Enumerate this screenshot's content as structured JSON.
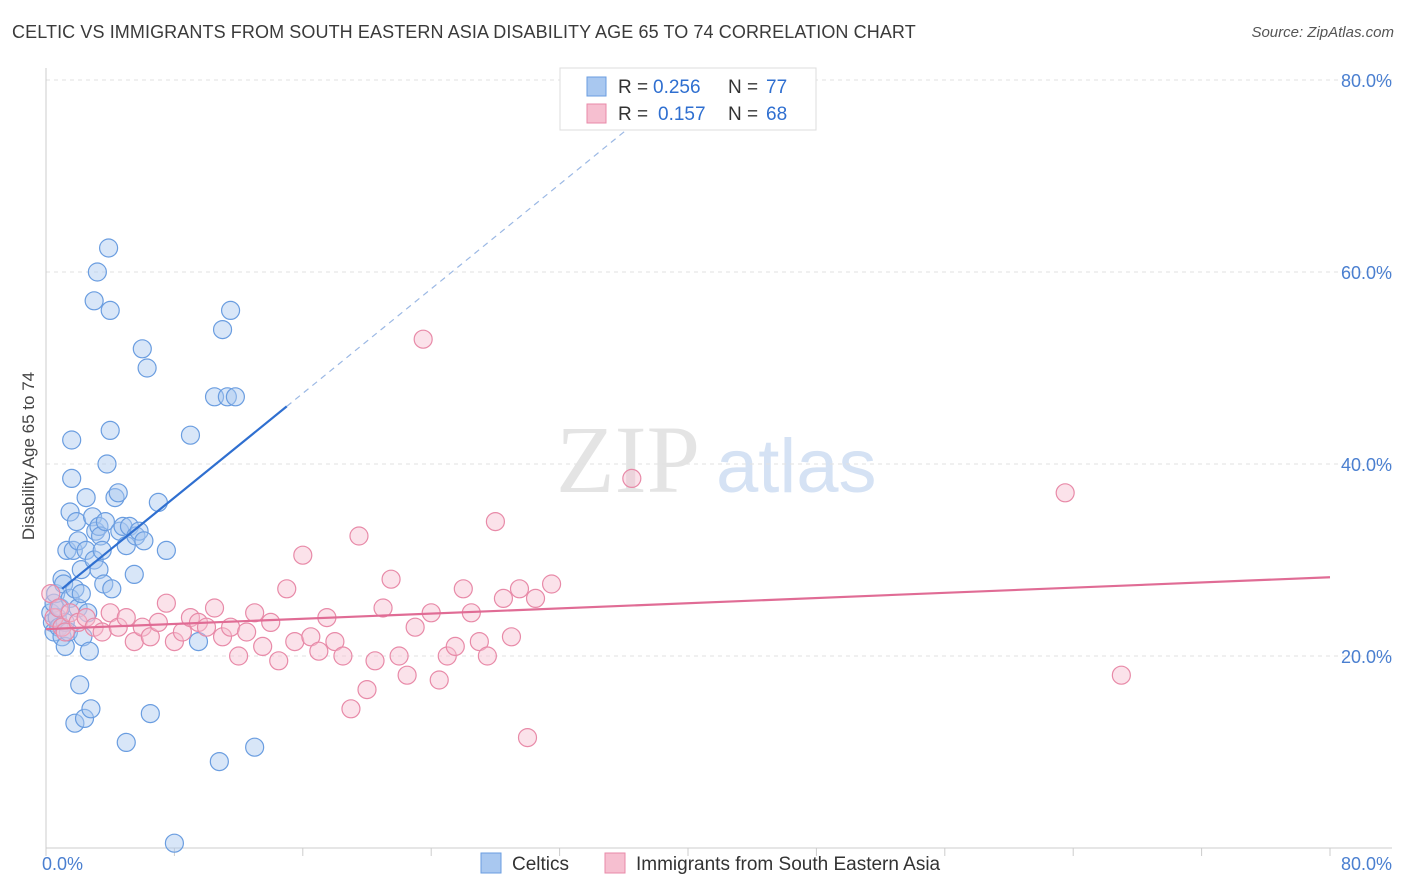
{
  "title": "CELTIC VS IMMIGRANTS FROM SOUTH EASTERN ASIA DISABILITY AGE 65 TO 74 CORRELATION CHART",
  "source": "Source: ZipAtlas.com",
  "watermark": {
    "zip": "ZIP",
    "atlas": "atlas"
  },
  "colors": {
    "celtic_fill": "#a9c8f0",
    "celtic_stroke": "#6a9de0",
    "celtic_line": "#2f6fd0",
    "immigrant_fill": "#f6bfd0",
    "immigrant_stroke": "#e88aa8",
    "immigrant_line": "#e06c95",
    "tick_text": "#4a7fd0"
  },
  "legend": {
    "rows": [
      {
        "r_label": "R =",
        "r_value": "0.256",
        "n_label": "N =",
        "n_value": "77"
      },
      {
        "r_label": "R =",
        "r_value": "0.157",
        "n_label": "N =",
        "n_value": "68"
      }
    ]
  },
  "chart_data": {
    "type": "scatter",
    "title": "CELTIC VS IMMIGRANTS FROM SOUTH EASTERN ASIA DISABILITY AGE 65 TO 74 CORRELATION CHART",
    "xlabel": "",
    "ylabel": "Disability Age 65 to 74",
    "xlim": [
      0,
      80
    ],
    "ylim": [
      0,
      80
    ],
    "x_tick_labels": [
      "0.0%",
      "80.0%"
    ],
    "y_tick_labels": [
      "20.0%",
      "40.0%",
      "60.0%",
      "80.0%"
    ],
    "y_ticks": [
      20,
      40,
      60,
      80
    ],
    "grid": true,
    "legend_position": "top-center",
    "series": [
      {
        "name": "Celtics",
        "r": 0.256,
        "n": 77,
        "trend": {
          "x0": 1.0,
          "y0": 27.0,
          "x1": 15.0,
          "y1": 46.0,
          "dash_to_x": 38.0,
          "dash_to_y": 77.3
        },
        "points": [
          [
            0.3,
            24.5
          ],
          [
            0.4,
            23.5
          ],
          [
            0.5,
            22.5
          ],
          [
            0.5,
            25.5
          ],
          [
            0.6,
            26.5
          ],
          [
            0.7,
            24.0
          ],
          [
            0.8,
            23.0
          ],
          [
            0.9,
            25.0
          ],
          [
            1.0,
            22.0
          ],
          [
            1.0,
            28.0
          ],
          [
            1.1,
            27.5
          ],
          [
            1.2,
            21.0
          ],
          [
            1.2,
            23.5
          ],
          [
            1.3,
            31.0
          ],
          [
            1.4,
            22.5
          ],
          [
            1.5,
            26.0
          ],
          [
            1.5,
            35.0
          ],
          [
            1.6,
            38.5
          ],
          [
            1.6,
            42.5
          ],
          [
            1.7,
            31.0
          ],
          [
            1.8,
            27.0
          ],
          [
            1.8,
            13.0
          ],
          [
            1.9,
            34.0
          ],
          [
            2.0,
            25.0
          ],
          [
            2.0,
            32.0
          ],
          [
            2.1,
            17.0
          ],
          [
            2.2,
            29.0
          ],
          [
            2.2,
            26.5
          ],
          [
            2.3,
            22.0
          ],
          [
            2.4,
            13.5
          ],
          [
            2.5,
            31.0
          ],
          [
            2.5,
            36.5
          ],
          [
            2.6,
            24.5
          ],
          [
            2.7,
            20.5
          ],
          [
            2.8,
            14.5
          ],
          [
            2.9,
            34.5
          ],
          [
            3.0,
            30.0
          ],
          [
            3.0,
            57.0
          ],
          [
            3.1,
            33.0
          ],
          [
            3.2,
            60.0
          ],
          [
            3.3,
            33.5
          ],
          [
            3.3,
            29.0
          ],
          [
            3.4,
            32.5
          ],
          [
            3.5,
            31.0
          ],
          [
            3.6,
            27.5
          ],
          [
            3.7,
            34.0
          ],
          [
            3.8,
            40.0
          ],
          [
            3.9,
            62.5
          ],
          [
            4.0,
            43.5
          ],
          [
            4.0,
            56.0
          ],
          [
            4.1,
            27.0
          ],
          [
            4.3,
            36.5
          ],
          [
            4.5,
            37.0
          ],
          [
            4.6,
            33.0
          ],
          [
            4.8,
            33.5
          ],
          [
            5.0,
            31.5
          ],
          [
            5.0,
            11.0
          ],
          [
            5.2,
            33.5
          ],
          [
            5.5,
            28.5
          ],
          [
            5.6,
            32.5
          ],
          [
            5.8,
            33.0
          ],
          [
            6.0,
            52.0
          ],
          [
            6.1,
            32.0
          ],
          [
            6.3,
            50.0
          ],
          [
            6.5,
            14.0
          ],
          [
            7.0,
            36.0
          ],
          [
            7.5,
            31.0
          ],
          [
            8.0,
            0.5
          ],
          [
            9.0,
            43.0
          ],
          [
            9.5,
            21.5
          ],
          [
            10.5,
            47.0
          ],
          [
            10.8,
            9.0
          ],
          [
            11.0,
            54.0
          ],
          [
            11.3,
            47.0
          ],
          [
            11.5,
            56.0
          ],
          [
            11.8,
            47.0
          ],
          [
            13.0,
            10.5
          ]
        ]
      },
      {
        "name": "Immigrants from South Eastern Asia",
        "r": 0.157,
        "n": 68,
        "trend": {
          "x0": 0.0,
          "y0": 22.8,
          "x1": 80.0,
          "y1": 28.2
        },
        "points": [
          [
            0.3,
            26.5
          ],
          [
            0.5,
            24.0
          ],
          [
            0.8,
            25.0
          ],
          [
            1.0,
            23.0
          ],
          [
            1.2,
            22.5
          ],
          [
            1.5,
            24.5
          ],
          [
            2.0,
            23.5
          ],
          [
            2.5,
            24.0
          ],
          [
            3.0,
            23.0
          ],
          [
            3.5,
            22.5
          ],
          [
            4.0,
            24.5
          ],
          [
            4.5,
            23.0
          ],
          [
            5.0,
            24.0
          ],
          [
            5.5,
            21.5
          ],
          [
            6.0,
            23.0
          ],
          [
            6.5,
            22.0
          ],
          [
            7.0,
            23.5
          ],
          [
            7.5,
            25.5
          ],
          [
            8.0,
            21.5
          ],
          [
            8.5,
            22.5
          ],
          [
            9.0,
            24.0
          ],
          [
            9.5,
            23.5
          ],
          [
            10.0,
            23.0
          ],
          [
            10.5,
            25.0
          ],
          [
            11.0,
            22.0
          ],
          [
            11.5,
            23.0
          ],
          [
            12.0,
            20.0
          ],
          [
            12.5,
            22.5
          ],
          [
            13.0,
            24.5
          ],
          [
            13.5,
            21.0
          ],
          [
            14.0,
            23.5
          ],
          [
            14.5,
            19.5
          ],
          [
            15.0,
            27.0
          ],
          [
            15.5,
            21.5
          ],
          [
            16.0,
            30.5
          ],
          [
            16.5,
            22.0
          ],
          [
            17.0,
            20.5
          ],
          [
            17.5,
            24.0
          ],
          [
            18.0,
            21.5
          ],
          [
            18.5,
            20.0
          ],
          [
            19.0,
            14.5
          ],
          [
            19.5,
            32.5
          ],
          [
            20.0,
            16.5
          ],
          [
            20.5,
            19.5
          ],
          [
            21.0,
            25.0
          ],
          [
            21.5,
            28.0
          ],
          [
            22.0,
            20.0
          ],
          [
            22.5,
            18.0
          ],
          [
            23.0,
            23.0
          ],
          [
            23.5,
            53.0
          ],
          [
            24.0,
            24.5
          ],
          [
            24.5,
            17.5
          ],
          [
            25.0,
            20.0
          ],
          [
            25.5,
            21.0
          ],
          [
            26.0,
            27.0
          ],
          [
            26.5,
            24.5
          ],
          [
            27.0,
            21.5
          ],
          [
            27.5,
            20.0
          ],
          [
            28.0,
            34.0
          ],
          [
            28.5,
            26.0
          ],
          [
            29.0,
            22.0
          ],
          [
            29.5,
            27.0
          ],
          [
            30.0,
            11.5
          ],
          [
            30.5,
            26.0
          ],
          [
            31.5,
            27.5
          ],
          [
            36.5,
            38.5
          ],
          [
            63.5,
            37.0
          ],
          [
            67.0,
            18.0
          ]
        ]
      }
    ]
  }
}
